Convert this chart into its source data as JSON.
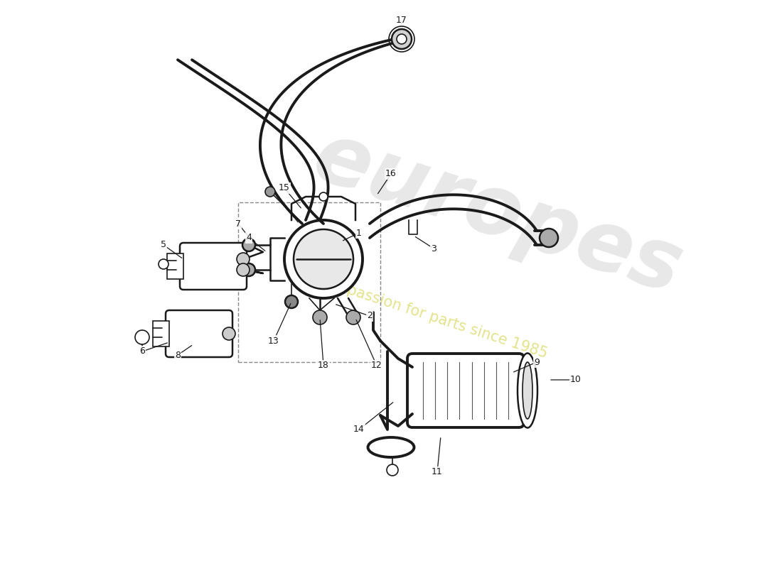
{
  "bg_color": "#ffffff",
  "line_color": "#1a1a1a",
  "label_color": "#1a1a1a",
  "wm1_color": "#cccccc",
  "wm2_color": "#d4d450",
  "wm1_text": "europes",
  "wm2_text": "a passion for parts since 1985",
  "fig_w": 11.0,
  "fig_h": 8.0,
  "dpi": 100,
  "xlim": [
    0,
    11
  ],
  "ylim": [
    0,
    8
  ]
}
